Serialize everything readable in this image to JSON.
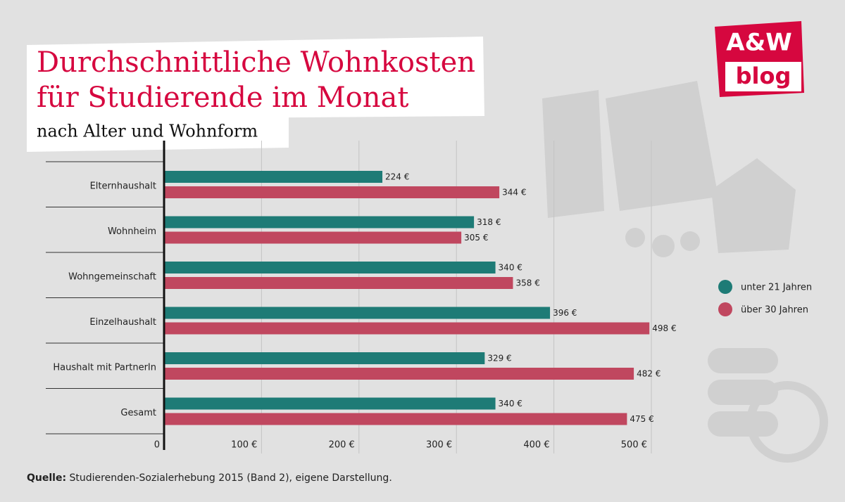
{
  "chart_data": {
    "type": "hbar",
    "title": [
      "Durchschnittliche Wohnkosten",
      "für Studierende im Monat"
    ],
    "subtitle": "nach Alter und Wohnform",
    "categories": [
      "Elternhaushalt",
      "Wohnheim",
      "Wohngemeinschaft",
      "Einzelhaushalt",
      "Haushalt mit PartnerIn",
      "Gesamt"
    ],
    "series": [
      {
        "name": "unter 21 Jahren",
        "color": "#1e7b76",
        "values": [
          224,
          318,
          340,
          396,
          329,
          340
        ],
        "value_labels": [
          "224 €",
          "318 €",
          "340 €",
          "396 €",
          "329 €",
          "340 €"
        ]
      },
      {
        "name": "über 30 Jahren",
        "color": "#c0475f",
        "values": [
          344,
          305,
          358,
          498,
          482,
          475
        ],
        "value_labels": [
          "344 €",
          "305 €",
          "358 €",
          "498 €",
          "482 €",
          "475 €"
        ]
      }
    ],
    "xlim": [
      0,
      500
    ],
    "xticks": [
      0,
      {
        "value": 100,
        "label": "100 €"
      },
      {
        "value": 200,
        "label": "200 €"
      },
      {
        "value": 300,
        "label": "300 €"
      },
      {
        "value": 400,
        "label": "400 €"
      },
      {
        "value": 500,
        "label": "500 €"
      }
    ],
    "grid": true,
    "legend": "right"
  },
  "source_label": "Quelle:",
  "source": "Studierenden-Sozialerhebung 2015 (Band 2), eigene Darstellung.",
  "logo": [
    "A&W",
    "blog"
  ]
}
